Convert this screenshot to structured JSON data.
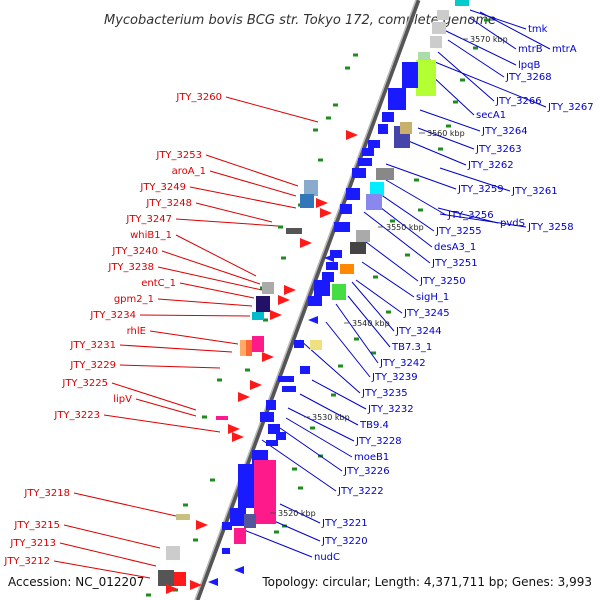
{
  "title": "Mycobacterium bovis BCG str. Tokyo 172, complete genome",
  "accession": "Accession: NC_012207",
  "summary": "Topology: circular; Length: 4,371,711 bp; Genes: 3,993",
  "colors": {
    "left_label": "#dd0000",
    "right_label": "#0000cc",
    "axis": "#777777",
    "ticks": "#1e8c1e"
  },
  "scale": [
    {
      "text": "3570 kbp"
    },
    {
      "text": "3560 kbp"
    },
    {
      "text": "3550 kbp"
    },
    {
      "text": "3540 kbp"
    },
    {
      "text": "3530 kbp"
    },
    {
      "text": "3520 kbp"
    }
  ],
  "left_labels": [
    "JTY_3260",
    "JTY_3253",
    "aroA_1",
    "JTY_3249",
    "JTY_3248",
    "JTY_3247",
    "whiB1_1",
    "JTY_3240",
    "JTY_3238",
    "entC_1",
    "gpm2_1",
    "JTY_3234",
    "rhlE",
    "JTY_3231",
    "JTY_3229",
    "JTY_3225",
    "lipV",
    "JTY_3223",
    "JTY_3218",
    "JTY_3215",
    "JTY_3213",
    "JTY_3212"
  ],
  "right_labels": [
    "tmk",
    "mtrB",
    "mtrA",
    "lpqB",
    "JTY_3268",
    "JTY_3266",
    "JTY_3267",
    "secA1",
    "JTY_3264",
    "JTY_3263",
    "JTY_3262",
    "JTY_3261",
    "JTY_3259",
    "pvdS",
    "JTY_3258",
    "JTY_3256",
    "JTY_3255",
    "desA3_1",
    "JTY_3251",
    "JTY_3250",
    "sigH_1",
    "JTY_3245",
    "JTY_3244",
    "TB7.3_1",
    "JTY_3242",
    "JTY_3239",
    "JTY_3235",
    "JTY_3232",
    "TB9.4",
    "JTY_3228",
    "moeB1",
    "JTY_3226",
    "JTY_3222",
    "JTY_3221",
    "JTY_3220",
    "nudC"
  ]
}
